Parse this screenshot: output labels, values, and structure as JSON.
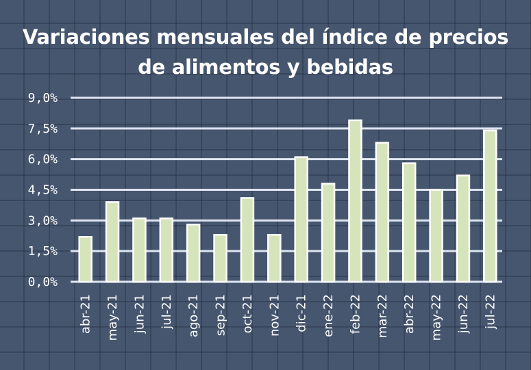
{
  "chart_data": {
    "type": "bar",
    "title_lines": [
      "Variaciones mensuales del índice de precios",
      "de alimentos y bebidas"
    ],
    "categories": [
      "abr-21",
      "may-21",
      "jun-21",
      "jul-21",
      "ago-21",
      "sep-21",
      "oct-21",
      "nov-21",
      "dic-21",
      "ene-22",
      "feb-22",
      "mar-22",
      "abr-22",
      "may-22",
      "jun-22",
      "jul-22"
    ],
    "values": [
      2.2,
      3.9,
      3.1,
      3.1,
      2.8,
      2.3,
      4.1,
      2.3,
      6.1,
      4.8,
      7.9,
      6.8,
      5.8,
      4.5,
      5.2,
      7.4
    ],
    "yticks": [
      "0,0%",
      "1,5%",
      "3,0%",
      "4,5%",
      "6,0%",
      "7,5%",
      "9,0%"
    ],
    "ytick_values": [
      0,
      1.5,
      3,
      4.5,
      6,
      7.5,
      9
    ],
    "ylim": [
      0,
      9
    ],
    "grid": true,
    "colors": {
      "bar": "#d6e4bb",
      "bar_stroke": "#ffffff",
      "grid": "#dfe6f2",
      "background": "#46566f"
    }
  }
}
